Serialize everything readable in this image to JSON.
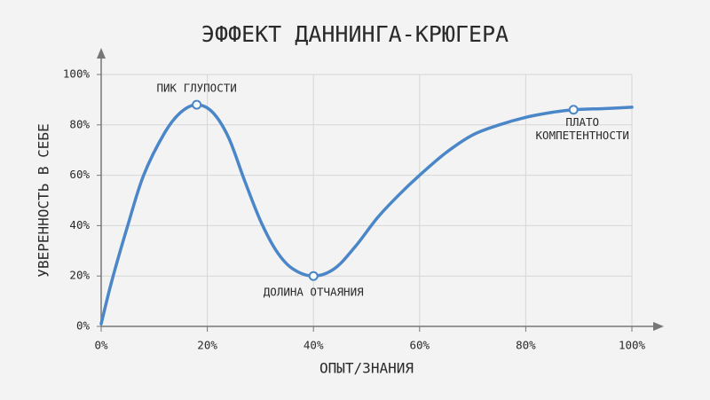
{
  "chart_data": {
    "type": "line",
    "title": "ЭФФЕКТ ДАННИНГА-КРЮГЕРА",
    "xlabel": "ОПЫТ/ЗНАНИЯ",
    "ylabel": "УВЕРЕННОСТЬ В СЕБЕ",
    "xlim": [
      0,
      100
    ],
    "ylim": [
      0,
      100
    ],
    "xticks": [
      {
        "value": 0,
        "label": "0%"
      },
      {
        "value": 20,
        "label": "20%"
      },
      {
        "value": 40,
        "label": "40%"
      },
      {
        "value": 60,
        "label": "60%"
      },
      {
        "value": 80,
        "label": "80%"
      },
      {
        "value": 100,
        "label": "100%"
      }
    ],
    "yticks": [
      {
        "value": 0,
        "label": "0%"
      },
      {
        "value": 20,
        "label": "20%"
      },
      {
        "value": 40,
        "label": "40%"
      },
      {
        "value": 60,
        "label": "60%"
      },
      {
        "value": 80,
        "label": "80%"
      },
      {
        "value": 100,
        "label": "100%"
      }
    ],
    "grid": true,
    "x": [
      0,
      2,
      5,
      8,
      12,
      15,
      18,
      21,
      24,
      27,
      30,
      33,
      36,
      40,
      44,
      48,
      52,
      56,
      60,
      65,
      70,
      75,
      80,
      85,
      89,
      95,
      100
    ],
    "series": [
      {
        "color": "#4a86c8",
        "values": [
          1,
          18,
          40,
          60,
          77,
          85,
          88,
          85,
          75,
          58,
          42,
          30,
          23,
          20,
          23,
          32,
          43,
          52,
          60,
          69,
          76,
          80,
          83,
          85,
          86,
          86.5,
          87
        ]
      }
    ],
    "annotations": [
      {
        "text": "ПИК ГЛУПОСТИ",
        "x": 18,
        "y": 88
      },
      {
        "text": "ДОЛИНА ОТЧАЯНИЯ",
        "x": 40,
        "y": 20
      },
      {
        "text": "ПЛАТО\nКОМПЕТЕНТНОСТИ",
        "x": 89,
        "y": 86
      }
    ]
  }
}
